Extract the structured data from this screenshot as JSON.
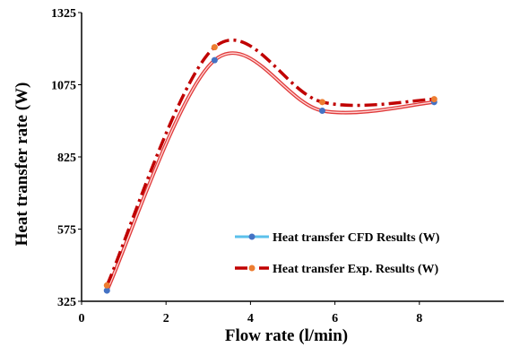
{
  "chart_data": {
    "type": "line",
    "title": "",
    "xlabel": "Flow rate (l/min)",
    "ylabel": "Heat transfer  rate (W)",
    "xlim": [
      0,
      10
    ],
    "ylim": [
      325,
      1325
    ],
    "xticks": [
      0,
      2,
      4,
      6,
      8
    ],
    "yticks": [
      325,
      575,
      825,
      1075,
      1325
    ],
    "grid": false,
    "legend_position": "bottom-right",
    "series": [
      {
        "name": "Heat transfer CFD Results (W)",
        "x": [
          0.6,
          3.15,
          5.7,
          8.35
        ],
        "y": [
          362,
          1160,
          985,
          1015
        ],
        "line_color": "#e03a3a",
        "marker_color": "#4472c4",
        "legend_line_color": "#5bc0eb"
      },
      {
        "name": "Heat transfer Exp. Results (W)",
        "x": [
          0.6,
          3.15,
          5.7,
          8.35
        ],
        "y": [
          380,
          1205,
          1015,
          1025
        ],
        "line_color": "#c00000",
        "marker_color": "#ed7d31"
      }
    ]
  }
}
